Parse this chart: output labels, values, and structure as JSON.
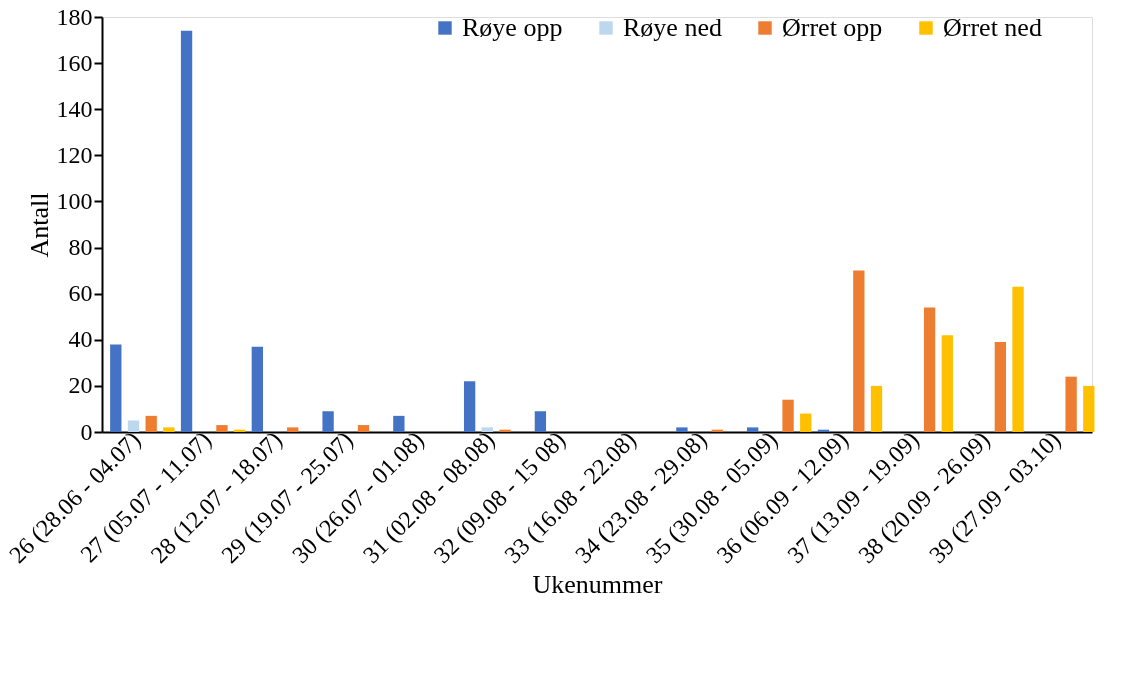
{
  "chart_data": {
    "type": "bar",
    "xlabel": "Ukenummer",
    "ylabel": "Antall",
    "categories": [
      "26 (28.06 - 04.07)",
      "27 (05.07 - 11.07)",
      "28 (12.07 - 18.07)",
      "29 (19.07 - 25.07)",
      "30 (26.07 - 01.08)",
      "31 (02.08 - 08.08)",
      "32 (09.08 - 15 08)",
      "33 (16.08 - 22.08)",
      "34 (23.08 - 29.08)",
      "35 (30.08 - 05.09)",
      "36 (06.09 - 12.09)",
      "37 (13.09 - 19.09)",
      "38 (20.09 - 26.09)",
      "39 (27.09 - 03.10)"
    ],
    "series": [
      {
        "name": "Røye opp",
        "color": "#4472c4",
        "values": [
          38,
          174,
          37,
          9,
          7,
          22,
          9,
          0,
          2,
          2,
          1,
          0,
          0,
          0
        ]
      },
      {
        "name": "Røye ned",
        "color": "#bdd7ee",
        "values": [
          5,
          0,
          0,
          0,
          0,
          2,
          0,
          0,
          0,
          0,
          0,
          0,
          0,
          0
        ]
      },
      {
        "name": "Ørret opp",
        "color": "#ed7d31",
        "values": [
          7,
          3,
          2,
          3,
          0,
          1,
          0,
          0,
          1,
          14,
          70,
          54,
          39,
          24
        ]
      },
      {
        "name": "Ørret ned",
        "color": "#ffc000",
        "values": [
          2,
          1,
          0,
          0,
          0,
          0,
          0,
          0,
          0,
          8,
          20,
          42,
          63,
          20
        ]
      }
    ],
    "ylim": [
      0,
      180
    ],
    "yticks": [
      0,
      20,
      40,
      60,
      80,
      100,
      120,
      140,
      160,
      180
    ],
    "grid": false,
    "legend": "top right"
  }
}
